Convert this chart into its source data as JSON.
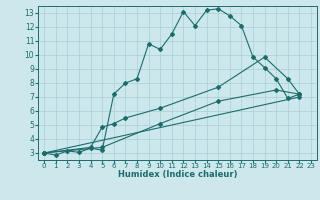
{
  "xlabel": "Humidex (Indice chaleur)",
  "bg_color": "#cce8ec",
  "grid_color": "#aacdd4",
  "line_color": "#1e6b6b",
  "xlim": [
    -0.5,
    23.5
  ],
  "ylim": [
    2.5,
    13.5
  ],
  "xticks": [
    0,
    1,
    2,
    3,
    4,
    5,
    6,
    7,
    8,
    9,
    10,
    11,
    12,
    13,
    14,
    15,
    16,
    17,
    18,
    19,
    20,
    21,
    22,
    23
  ],
  "yticks": [
    3,
    4,
    5,
    6,
    7,
    8,
    9,
    10,
    11,
    12,
    13
  ],
  "series1_x": [
    0,
    1,
    2,
    3,
    4,
    5,
    6,
    7,
    8,
    9,
    10,
    11,
    12,
    13,
    14,
    15,
    16,
    17,
    18,
    19,
    20,
    21,
    22
  ],
  "series1_y": [
    3.0,
    2.85,
    3.15,
    3.05,
    3.35,
    3.2,
    7.2,
    8.0,
    8.3,
    10.8,
    10.4,
    11.5,
    13.1,
    12.1,
    13.2,
    13.3,
    12.8,
    12.1,
    9.85,
    9.1,
    8.3,
    6.9,
    7.2
  ],
  "series2_x": [
    0,
    4,
    5,
    6,
    7,
    10,
    15,
    19,
    21,
    22
  ],
  "series2_y": [
    3.0,
    3.4,
    4.85,
    5.1,
    5.5,
    6.2,
    7.7,
    9.85,
    8.3,
    7.2
  ],
  "series3_x": [
    0,
    5,
    10,
    15,
    20,
    22
  ],
  "series3_y": [
    3.0,
    3.4,
    5.1,
    6.7,
    7.5,
    7.2
  ],
  "series4_x": [
    0,
    22
  ],
  "series4_y": [
    3.0,
    7.0
  ]
}
